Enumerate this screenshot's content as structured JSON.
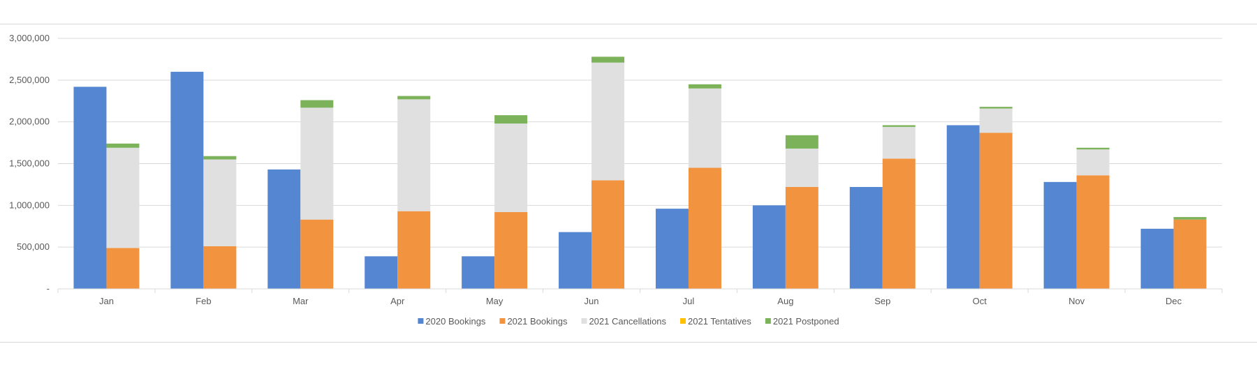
{
  "chart_data": {
    "type": "bar",
    "categories": [
      "Jan",
      "Feb",
      "Mar",
      "Apr",
      "May",
      "Jun",
      "Jul",
      "Aug",
      "Sep",
      "Oct",
      "Nov",
      "Dec"
    ],
    "ylim": [
      0,
      3000000
    ],
    "y_ticks": [
      {
        "value": 0,
        "label": "-"
      },
      {
        "value": 500000,
        "label": "500,000"
      },
      {
        "value": 1000000,
        "label": "1,000,000"
      },
      {
        "value": 1500000,
        "label": "1,500,000"
      },
      {
        "value": 2000000,
        "label": "2,000,000"
      },
      {
        "value": 2500000,
        "label": "2,500,000"
      },
      {
        "value": 3000000,
        "label": "3,000,000"
      }
    ],
    "grid": true,
    "legend_position": "bottom",
    "series": [
      {
        "name": "2020 Bookings",
        "stack": "2020",
        "color": "#5586d2",
        "values": [
          2420000,
          2600000,
          1430000,
          390000,
          390000,
          680000,
          960000,
          1000000,
          1220000,
          1960000,
          1280000,
          720000
        ]
      },
      {
        "name": "2021 Bookings",
        "stack": "2021",
        "color": "#f29340",
        "values": [
          490000,
          510000,
          830000,
          930000,
          920000,
          1300000,
          1450000,
          1220000,
          1560000,
          1870000,
          1360000,
          830000
        ]
      },
      {
        "name": "2021 Cancellations",
        "stack": "2021",
        "color": "#e0e0e0",
        "values": [
          1200000,
          1040000,
          1340000,
          1340000,
          1060000,
          1410000,
          950000,
          460000,
          380000,
          290000,
          310000,
          0
        ]
      },
      {
        "name": "2021 Tentatives",
        "stack": "2021",
        "color": "#ffc000",
        "values": [
          0,
          0,
          0,
          0,
          0,
          0,
          0,
          0,
          0,
          0,
          0,
          0
        ]
      },
      {
        "name": "2021 Postponed",
        "stack": "2021",
        "color": "#7cb35a",
        "values": [
          50000,
          40000,
          90000,
          40000,
          100000,
          70000,
          50000,
          160000,
          20000,
          20000,
          20000,
          30000
        ]
      }
    ]
  }
}
